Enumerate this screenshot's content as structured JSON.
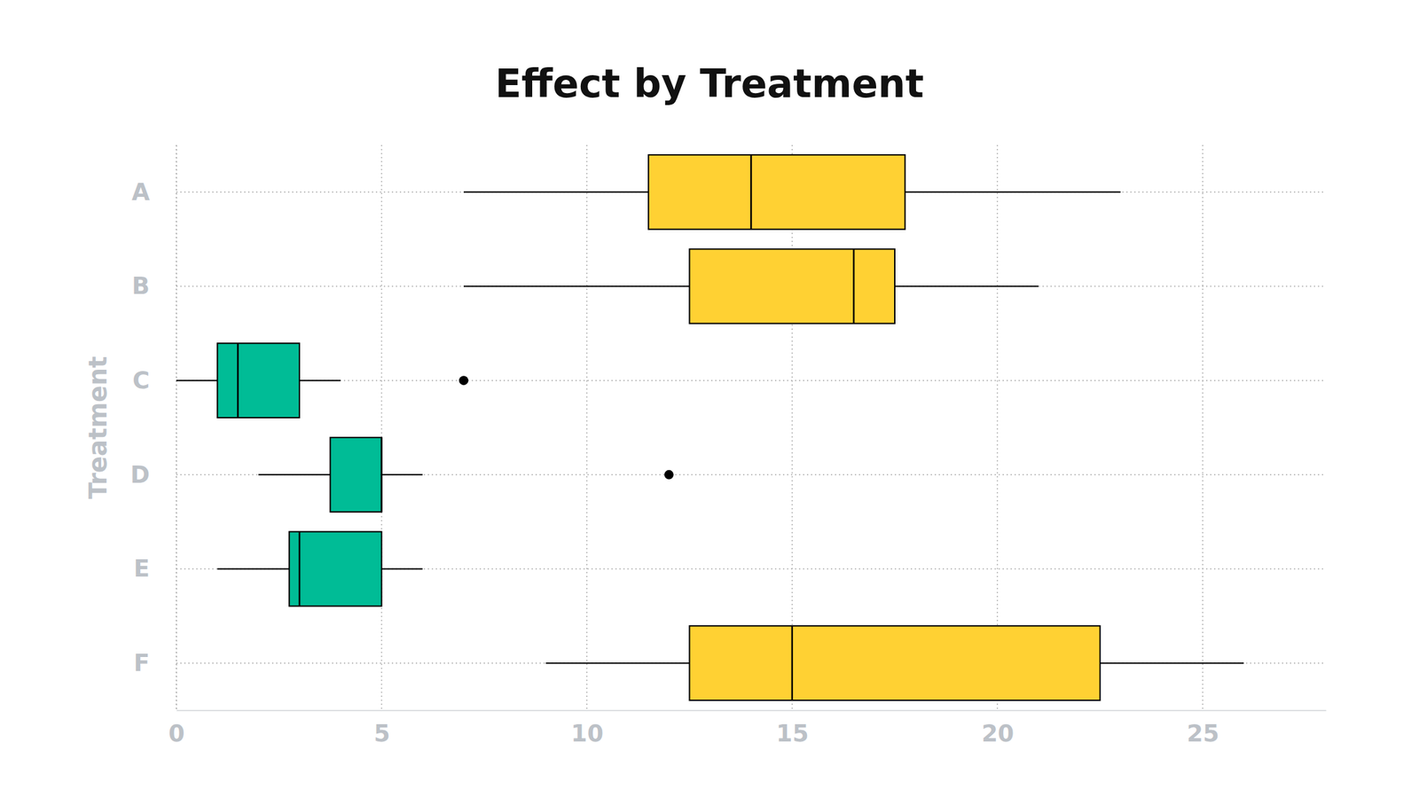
{
  "chart_data": {
    "type": "box",
    "orientation": "horizontal",
    "title": "Effect by Treatment",
    "y_label": "Treatment",
    "categories": [
      "A",
      "B",
      "C",
      "D",
      "E",
      "F"
    ],
    "stats": [
      {
        "low": 7,
        "q1": 11.5,
        "median": 14,
        "q3": 17.75,
        "high": 23,
        "outliers": []
      },
      {
        "low": 7,
        "q1": 12.5,
        "median": 16.5,
        "q3": 17.5,
        "high": 21,
        "outliers": []
      },
      {
        "low": 0,
        "q1": 1,
        "median": 1.5,
        "q3": 3,
        "high": 4,
        "outliers": [
          7
        ]
      },
      {
        "low": 2,
        "q1": 3.75,
        "median": 5,
        "q3": 5,
        "high": 6,
        "outliers": [
          12
        ]
      },
      {
        "low": 1,
        "q1": 2.75,
        "median": 3,
        "q3": 5,
        "high": 6,
        "outliers": []
      },
      {
        "low": 9,
        "q1": 12.5,
        "median": 15,
        "q3": 22.5,
        "high": 26,
        "outliers": []
      }
    ],
    "colors": [
      "#ffd133",
      "#ffd133",
      "#00bc96",
      "#00bc96",
      "#00bc96",
      "#ffd133"
    ],
    "xlim": [
      0,
      28
    ],
    "xticks": [
      0,
      5,
      10,
      15,
      20,
      25
    ],
    "grid": true
  }
}
